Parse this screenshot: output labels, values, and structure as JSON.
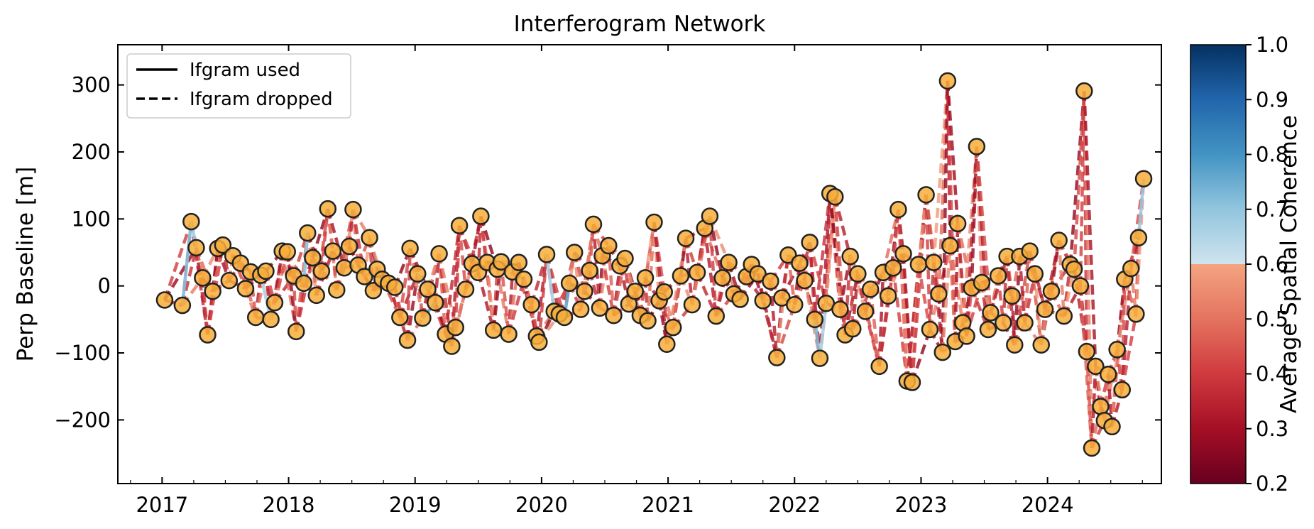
{
  "chart_data": {
    "type": "network",
    "title": "Interferogram Network",
    "xlabel": "",
    "ylabel": "Perp Baseline [m]",
    "xlim": [
      2016.65,
      2024.9
    ],
    "ylim": [
      -295,
      360
    ],
    "xticks": [
      2017,
      2018,
      2019,
      2020,
      2021,
      2022,
      2023,
      2024
    ],
    "xtick_labels": [
      "2017",
      "2018",
      "2019",
      "2020",
      "2021",
      "2022",
      "2023",
      "2024"
    ],
    "yticks": [
      -200,
      -100,
      0,
      100,
      200,
      300
    ],
    "ytick_labels": [
      "−200",
      "−100",
      "0",
      "100",
      "200",
      "300"
    ],
    "legend": {
      "placement": "upper-left",
      "entries": [
        {
          "label": "Ifgram used",
          "style": "solid"
        },
        {
          "label": "Ifgram dropped",
          "style": "dashed"
        }
      ]
    },
    "colorbar": {
      "label": "Average Spatial Coherence",
      "range": [
        0.2,
        1.0
      ],
      "ticks": [
        0.2,
        0.3,
        0.4,
        0.5,
        0.6,
        0.7,
        0.8,
        0.9,
        1.0
      ],
      "tick_labels": [
        "0.2",
        "0.3",
        "0.4",
        "0.5",
        "0.6",
        "0.7",
        "0.8",
        "0.9",
        "1.0"
      ],
      "colormap": "RdBu",
      "lower_saturation_below": 0.7
    },
    "acquisitions": [
      {
        "t": 2017.02,
        "b": -21
      },
      {
        "t": 2017.16,
        "b": -29
      },
      {
        "t": 2017.23,
        "b": 96
      },
      {
        "t": 2017.27,
        "b": 57
      },
      {
        "t": 2017.32,
        "b": 12
      },
      {
        "t": 2017.36,
        "b": -73
      },
      {
        "t": 2017.4,
        "b": -8
      },
      {
        "t": 2017.44,
        "b": 56
      },
      {
        "t": 2017.48,
        "b": 61
      },
      {
        "t": 2017.53,
        "b": 8
      },
      {
        "t": 2017.56,
        "b": 45
      },
      {
        "t": 2017.62,
        "b": 34
      },
      {
        "t": 2017.66,
        "b": -4
      },
      {
        "t": 2017.7,
        "b": 21
      },
      {
        "t": 2017.74,
        "b": -47
      },
      {
        "t": 2017.78,
        "b": 16
      },
      {
        "t": 2017.82,
        "b": 22
      },
      {
        "t": 2017.86,
        "b": -50
      },
      {
        "t": 2017.89,
        "b": -25
      },
      {
        "t": 2017.95,
        "b": 52
      },
      {
        "t": 2017.99,
        "b": 51
      },
      {
        "t": 2018.04,
        "b": 15
      },
      {
        "t": 2018.06,
        "b": -68
      },
      {
        "t": 2018.12,
        "b": 4
      },
      {
        "t": 2018.15,
        "b": 79
      },
      {
        "t": 2018.19,
        "b": 42
      },
      {
        "t": 2018.22,
        "b": -14
      },
      {
        "t": 2018.26,
        "b": 22
      },
      {
        "t": 2018.31,
        "b": 115
      },
      {
        "t": 2018.35,
        "b": 52
      },
      {
        "t": 2018.38,
        "b": -6
      },
      {
        "t": 2018.44,
        "b": 27
      },
      {
        "t": 2018.48,
        "b": 59
      },
      {
        "t": 2018.51,
        "b": 114
      },
      {
        "t": 2018.55,
        "b": 31
      },
      {
        "t": 2018.6,
        "b": 14
      },
      {
        "t": 2018.64,
        "b": 72
      },
      {
        "t": 2018.67,
        "b": -7
      },
      {
        "t": 2018.7,
        "b": 25
      },
      {
        "t": 2018.74,
        "b": 10
      },
      {
        "t": 2018.79,
        "b": 4
      },
      {
        "t": 2018.84,
        "b": -2
      },
      {
        "t": 2018.88,
        "b": -47
      },
      {
        "t": 2018.94,
        "b": -81
      },
      {
        "t": 2018.96,
        "b": 56
      },
      {
        "t": 2019.02,
        "b": 18
      },
      {
        "t": 2019.06,
        "b": -48
      },
      {
        "t": 2019.1,
        "b": -5
      },
      {
        "t": 2019.16,
        "b": -25
      },
      {
        "t": 2019.19,
        "b": 48
      },
      {
        "t": 2019.24,
        "b": -72
      },
      {
        "t": 2019.29,
        "b": -90
      },
      {
        "t": 2019.32,
        "b": -62
      },
      {
        "t": 2019.35,
        "b": 90
      },
      {
        "t": 2019.4,
        "b": -5
      },
      {
        "t": 2019.45,
        "b": 33
      },
      {
        "t": 2019.5,
        "b": 20
      },
      {
        "t": 2019.52,
        "b": 104
      },
      {
        "t": 2019.57,
        "b": 35
      },
      {
        "t": 2019.62,
        "b": -66
      },
      {
        "t": 2019.65,
        "b": 25
      },
      {
        "t": 2019.68,
        "b": 36
      },
      {
        "t": 2019.74,
        "b": -72
      },
      {
        "t": 2019.77,
        "b": 21
      },
      {
        "t": 2019.82,
        "b": 35
      },
      {
        "t": 2019.86,
        "b": 10
      },
      {
        "t": 2019.92,
        "b": -28
      },
      {
        "t": 2019.96,
        "b": -75
      },
      {
        "t": 2019.98,
        "b": -84
      },
      {
        "t": 2020.04,
        "b": 47
      },
      {
        "t": 2020.1,
        "b": -38
      },
      {
        "t": 2020.14,
        "b": -42
      },
      {
        "t": 2020.18,
        "b": -47
      },
      {
        "t": 2020.22,
        "b": 4
      },
      {
        "t": 2020.26,
        "b": 50
      },
      {
        "t": 2020.31,
        "b": -35
      },
      {
        "t": 2020.34,
        "b": -8
      },
      {
        "t": 2020.38,
        "b": 23
      },
      {
        "t": 2020.41,
        "b": 92
      },
      {
        "t": 2020.46,
        "b": -33
      },
      {
        "t": 2020.48,
        "b": 45
      },
      {
        "t": 2020.53,
        "b": 60
      },
      {
        "t": 2020.57,
        "b": -44
      },
      {
        "t": 2020.62,
        "b": 30
      },
      {
        "t": 2020.66,
        "b": 41
      },
      {
        "t": 2020.69,
        "b": -27
      },
      {
        "t": 2020.74,
        "b": -8
      },
      {
        "t": 2020.78,
        "b": -44
      },
      {
        "t": 2020.82,
        "b": 12
      },
      {
        "t": 2020.84,
        "b": -52
      },
      {
        "t": 2020.89,
        "b": 95
      },
      {
        "t": 2020.93,
        "b": -22
      },
      {
        "t": 2020.97,
        "b": -9
      },
      {
        "t": 2020.99,
        "b": -87
      },
      {
        "t": 2021.04,
        "b": -62
      },
      {
        "t": 2021.1,
        "b": 15
      },
      {
        "t": 2021.14,
        "b": 71
      },
      {
        "t": 2021.19,
        "b": -28
      },
      {
        "t": 2021.23,
        "b": 20
      },
      {
        "t": 2021.29,
        "b": 86
      },
      {
        "t": 2021.33,
        "b": 104
      },
      {
        "t": 2021.38,
        "b": -45
      },
      {
        "t": 2021.43,
        "b": 12
      },
      {
        "t": 2021.48,
        "b": 35
      },
      {
        "t": 2021.52,
        "b": -12
      },
      {
        "t": 2021.57,
        "b": -20
      },
      {
        "t": 2021.62,
        "b": 14
      },
      {
        "t": 2021.66,
        "b": 32
      },
      {
        "t": 2021.71,
        "b": 18
      },
      {
        "t": 2021.75,
        "b": -22
      },
      {
        "t": 2021.81,
        "b": 7
      },
      {
        "t": 2021.86,
        "b": -107
      },
      {
        "t": 2021.9,
        "b": -18
      },
      {
        "t": 2021.95,
        "b": 46
      },
      {
        "t": 2022.0,
        "b": -28
      },
      {
        "t": 2022.04,
        "b": 34
      },
      {
        "t": 2022.08,
        "b": 8
      },
      {
        "t": 2022.12,
        "b": 65
      },
      {
        "t": 2022.16,
        "b": -50
      },
      {
        "t": 2022.2,
        "b": -108
      },
      {
        "t": 2022.25,
        "b": -26
      },
      {
        "t": 2022.28,
        "b": 138
      },
      {
        "t": 2022.32,
        "b": 133
      },
      {
        "t": 2022.36,
        "b": -35
      },
      {
        "t": 2022.4,
        "b": -73
      },
      {
        "t": 2022.44,
        "b": 44
      },
      {
        "t": 2022.46,
        "b": -64
      },
      {
        "t": 2022.5,
        "b": 18
      },
      {
        "t": 2022.56,
        "b": -38
      },
      {
        "t": 2022.6,
        "b": -5
      },
      {
        "t": 2022.67,
        "b": -120
      },
      {
        "t": 2022.7,
        "b": 20
      },
      {
        "t": 2022.74,
        "b": -15
      },
      {
        "t": 2022.78,
        "b": 27
      },
      {
        "t": 2022.82,
        "b": 114
      },
      {
        "t": 2022.86,
        "b": 48
      },
      {
        "t": 2022.89,
        "b": -142
      },
      {
        "t": 2022.93,
        "b": -144
      },
      {
        "t": 2022.98,
        "b": 32
      },
      {
        "t": 2023.04,
        "b": 136
      },
      {
        "t": 2023.07,
        "b": -65
      },
      {
        "t": 2023.1,
        "b": 35
      },
      {
        "t": 2023.14,
        "b": -12
      },
      {
        "t": 2023.17,
        "b": -99
      },
      {
        "t": 2023.21,
        "b": 306
      },
      {
        "t": 2023.23,
        "b": 60
      },
      {
        "t": 2023.27,
        "b": -83
      },
      {
        "t": 2023.29,
        "b": 93
      },
      {
        "t": 2023.33,
        "b": -55
      },
      {
        "t": 2023.36,
        "b": -75
      },
      {
        "t": 2023.4,
        "b": -3
      },
      {
        "t": 2023.44,
        "b": 208
      },
      {
        "t": 2023.48,
        "b": 5
      },
      {
        "t": 2023.53,
        "b": -65
      },
      {
        "t": 2023.55,
        "b": -40
      },
      {
        "t": 2023.61,
        "b": 15
      },
      {
        "t": 2023.65,
        "b": -55
      },
      {
        "t": 2023.68,
        "b": 44
      },
      {
        "t": 2023.72,
        "b": -15
      },
      {
        "t": 2023.74,
        "b": -88
      },
      {
        "t": 2023.78,
        "b": 44
      },
      {
        "t": 2023.82,
        "b": -55
      },
      {
        "t": 2023.86,
        "b": 52
      },
      {
        "t": 2023.9,
        "b": 18
      },
      {
        "t": 2023.95,
        "b": -88
      },
      {
        "t": 2023.98,
        "b": -35
      },
      {
        "t": 2024.03,
        "b": -8
      },
      {
        "t": 2024.09,
        "b": 68
      },
      {
        "t": 2024.13,
        "b": -45
      },
      {
        "t": 2024.18,
        "b": 32
      },
      {
        "t": 2024.21,
        "b": 25
      },
      {
        "t": 2024.26,
        "b": 0
      },
      {
        "t": 2024.29,
        "b": 291
      },
      {
        "t": 2024.31,
        "b": -98
      },
      {
        "t": 2024.35,
        "b": -242
      },
      {
        "t": 2024.38,
        "b": -120
      },
      {
        "t": 2024.42,
        "b": -180
      },
      {
        "t": 2024.45,
        "b": -201
      },
      {
        "t": 2024.48,
        "b": -132
      },
      {
        "t": 2024.51,
        "b": -210
      },
      {
        "t": 2024.55,
        "b": -95
      },
      {
        "t": 2024.59,
        "b": -155
      },
      {
        "t": 2024.61,
        "b": 10
      },
      {
        "t": 2024.66,
        "b": 26
      },
      {
        "t": 2024.7,
        "b": -42
      },
      {
        "t": 2024.72,
        "b": 72
      },
      {
        "t": 2024.76,
        "b": 160
      }
    ],
    "used_pairs": [
      {
        "i": 1,
        "j": 2,
        "coh": 0.82
      },
      {
        "i": 2,
        "j": 3,
        "coh": 0.78
      },
      {
        "i": 15,
        "j": 17,
        "coh": 0.74
      },
      {
        "i": 23,
        "j": 24,
        "coh": 0.8
      },
      {
        "i": 45,
        "j": 47,
        "coh": 0.8
      },
      {
        "i": 46,
        "j": 48,
        "coh": 0.85
      },
      {
        "i": 70,
        "j": 71,
        "coh": 0.84
      },
      {
        "i": 71,
        "j": 72,
        "coh": 0.88
      },
      {
        "i": 72,
        "j": 73,
        "coh": 0.86
      },
      {
        "i": 69,
        "j": 70,
        "coh": 0.76
      },
      {
        "i": 118,
        "j": 119,
        "coh": 0.82
      },
      {
        "i": 119,
        "j": 120,
        "coh": 0.76
      },
      {
        "i": 186,
        "j": 187,
        "coh": 0.82
      },
      {
        "i": 187,
        "j": 188,
        "coh": 0.84
      },
      {
        "i": 188,
        "j": 189,
        "coh": 0.86
      },
      {
        "i": 185,
        "j": 186,
        "coh": 0.78
      }
    ]
  }
}
